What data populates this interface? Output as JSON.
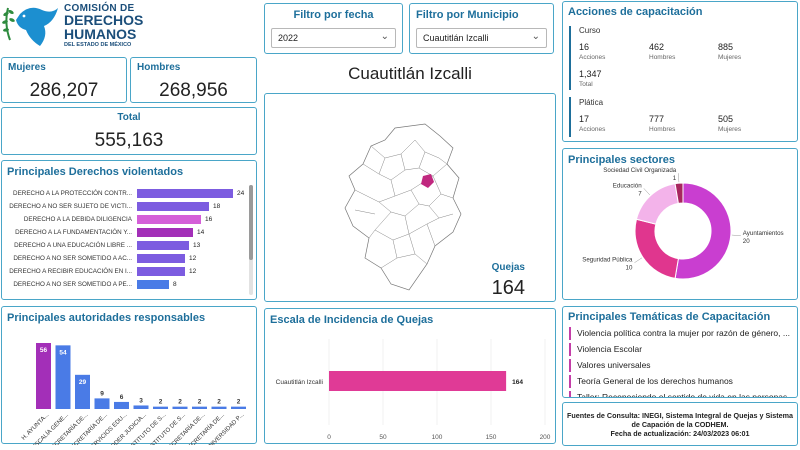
{
  "logo": {
    "line1": "COMISIÓN DE",
    "line2": "DERECHOS",
    "line3": "HUMANOS",
    "line4": "DEL ESTADO DE MÉXICO"
  },
  "kpis": {
    "mujeres_label": "Mujeres",
    "mujeres_value": "286,207",
    "hombres_label": "Hombres",
    "hombres_value": "268,956",
    "total_label": "Total",
    "total_value": "555,163"
  },
  "filters": {
    "fecha_title": "Filtro por fecha",
    "fecha_value": "2022",
    "municipio_title": "Filtro por Municipio",
    "municipio_value": "Cuautitlán Izcalli",
    "chevron_icon": "chevron-down-icon"
  },
  "map": {
    "title": "Cuautitlán Izcalli",
    "quejas_label": "Quejas",
    "quejas_value": "164",
    "highlight_color": "#c0287f"
  },
  "capacitacion": {
    "title": "Acciones de capacitación",
    "curso": {
      "label": "Curso",
      "acciones": "16",
      "acciones_label": "Acciones",
      "hombres": "462",
      "hombres_label": "Hombres",
      "mujeres": "885",
      "mujeres_label": "Mujeres",
      "total": "1,347",
      "total_label": "Total"
    },
    "platica": {
      "label": "Plática",
      "acciones": "17",
      "acciones_label": "Acciones",
      "hombres": "777",
      "hombres_label": "Hombres",
      "mujeres": "505",
      "mujeres_label": "Mujeres"
    }
  },
  "derechos": {
    "title": "Principales Derechos violentados",
    "rows": [
      {
        "label": "DERECHO A LA PROTECCIÓN CONTR...",
        "value": 24,
        "color": "#7c5ce0"
      },
      {
        "label": "DERECHO A NO SER SUJETO DE VICTI...",
        "value": 18,
        "color": "#7c5ce0"
      },
      {
        "label": "DERECHO A LA DEBIDA DILIGENCIA",
        "value": 16,
        "color": "#d45fd8"
      },
      {
        "label": "DERECHO A LA FUNDAMENTACIÓN Y...",
        "value": 14,
        "color": "#a32fb8"
      },
      {
        "label": "DERECHO A UNA EDUCACIÓN LIBRE ...",
        "value": 13,
        "color": "#7c5ce0"
      },
      {
        "label": "DERECHO A NO SER SOMETIDO A AC...",
        "value": 12,
        "color": "#7c5ce0"
      },
      {
        "label": "DERECHO A RECIBIR EDUCACIÓN EN I...",
        "value": 12,
        "color": "#7c5ce0"
      },
      {
        "label": "DERECHO A NO SER SOMETIDO A PE...",
        "value": 8,
        "color": "#4a7be6"
      }
    ]
  },
  "autoridades": {
    "title": "Principales autoridades responsables",
    "cols": [
      {
        "label": "H. AYUNTA...",
        "value": 56,
        "color": "#a32fb8"
      },
      {
        "label": "FISCALÍA GENE...",
        "value": 54,
        "color": "#4a7be6"
      },
      {
        "label": "SECRETARÍA DE...",
        "value": 29,
        "color": "#4a7be6"
      },
      {
        "label": "SECRETARÍA DE...",
        "value": 9,
        "color": "#4a7be6"
      },
      {
        "label": "SERVICIOS EDU...",
        "value": 6,
        "color": "#4a7be6"
      },
      {
        "label": "PODER JUDICIA...",
        "value": 3,
        "color": "#4a7be6"
      },
      {
        "label": "INSTITUTO DE S...",
        "value": 2,
        "color": "#4a7be6"
      },
      {
        "label": "INSTITUTO DE S...",
        "value": 2,
        "color": "#4a7be6"
      },
      {
        "label": "SECRETARÍA DE...",
        "value": 2,
        "color": "#4a7be6"
      },
      {
        "label": "SECRETARÍA DE...",
        "value": 2,
        "color": "#4a7be6"
      },
      {
        "label": "UNIVERSIDAD P...",
        "value": 2,
        "color": "#4a7be6"
      }
    ]
  },
  "escala": {
    "title": "Escala de Incidencia de Quejas",
    "bar_label": "Cuautitlán Izcalli",
    "bar_value": 164,
    "bar_color": "#e03a96",
    "xticks": [
      "0",
      "50",
      "100",
      "150",
      "200"
    ],
    "xmax": 200
  },
  "sectores": {
    "title": "Principales sectores",
    "slices": [
      {
        "label": "Ayuntamientos",
        "value": 20,
        "color": "#c93ed0"
      },
      {
        "label": "Seguridad Pública",
        "value": 10,
        "color": "#e0368e"
      },
      {
        "label": "Educación",
        "value": 7,
        "color": "#f3b3ea"
      },
      {
        "label": "Sociedad Civil Organizada",
        "value": 1,
        "color": "#a8265f"
      }
    ]
  },
  "tematicas": {
    "title": "Principales Temáticas de Capacitación",
    "items": [
      "Violencia política contra la mujer por razón de género, ...",
      "Violencia Escolar",
      "Valores universales",
      "Teoría General de los derechos humanos",
      "Taller: Reconociendo el sentido de vida en las personas ..."
    ]
  },
  "fuentes": {
    "line1": "Fuentes de Consulta: INEGI, Sistema Integral de Quejas y Sistema",
    "line2": "de Capación de la CODHEM.",
    "line3": "Fecha de actualización: 24/03/2023 06:01"
  },
  "chart_data": [
    {
      "type": "bar",
      "title": "Principales Derechos violentados",
      "orientation": "horizontal",
      "categories": [
        "DERECHO A LA PROTECCIÓN CONTR...",
        "DERECHO A NO SER SUJETO DE VICTI...",
        "DERECHO A LA DEBIDA DILIGENCIA",
        "DERECHO A LA FUNDAMENTACIÓN Y...",
        "DERECHO A UNA EDUCACIÓN LIBRE ...",
        "DERECHO A NO SER SOMETIDO A AC...",
        "DERECHO A RECIBIR EDUCACIÓN EN I...",
        "DERECHO A NO SER SOMETIDO A PE..."
      ],
      "values": [
        24,
        18,
        16,
        14,
        13,
        12,
        12,
        8
      ]
    },
    {
      "type": "bar",
      "title": "Principales autoridades responsables",
      "categories": [
        "H. AYUNTA...",
        "FISCALÍA GENE...",
        "SECRETARÍA DE...",
        "SECRETARÍA DE...",
        "SERVICIOS EDU...",
        "PODER JUDICIA...",
        "INSTITUTO DE S...",
        "INSTITUTO DE S...",
        "SECRETARÍA DE...",
        "SECRETARÍA DE...",
        "UNIVERSIDAD P..."
      ],
      "values": [
        56,
        54,
        29,
        9,
        6,
        3,
        2,
        2,
        2,
        2,
        2
      ]
    },
    {
      "type": "bar",
      "title": "Escala de Incidencia de Quejas",
      "orientation": "horizontal",
      "categories": [
        "Cuautitlán Izcalli"
      ],
      "values": [
        164
      ],
      "xlim": [
        0,
        200
      ]
    },
    {
      "type": "pie",
      "title": "Principales sectores",
      "categories": [
        "Ayuntamientos",
        "Seguridad Pública",
        "Educación",
        "Sociedad Civil Organizada"
      ],
      "values": [
        20,
        10,
        7,
        1
      ]
    }
  ]
}
